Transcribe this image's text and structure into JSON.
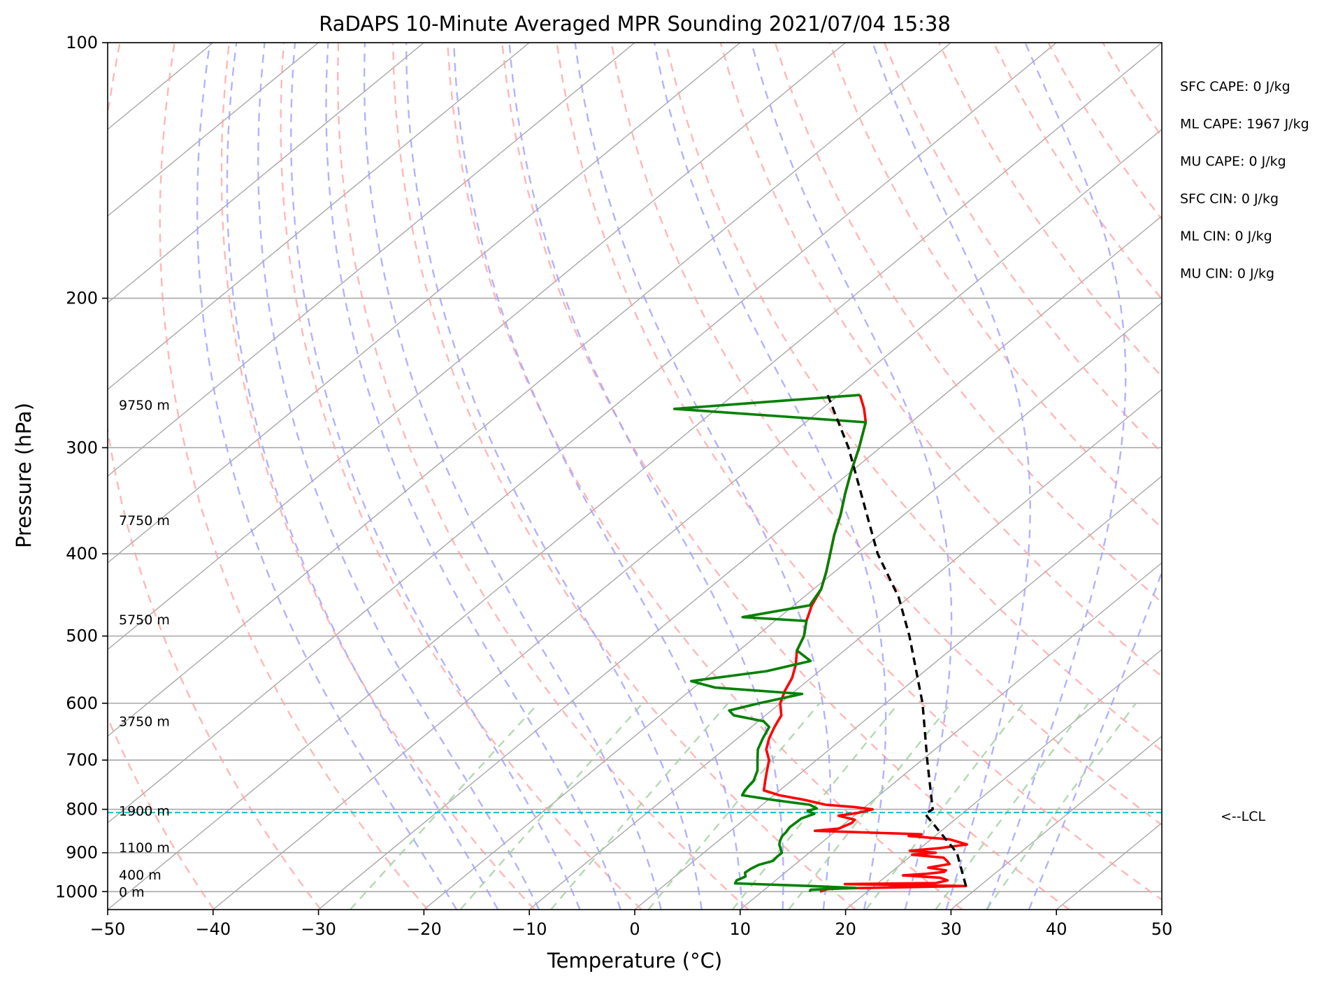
{
  "chart_data": {
    "type": "line",
    "title": "RaDAPS 10-Minute Averaged MPR Sounding 2021/07/04 15:38",
    "xlabel": "Temperature (°C)",
    "ylabel": "Pressure (hPa)",
    "xlim": [
      -50,
      50
    ],
    "ylim": [
      1050,
      100
    ],
    "y_scale": "log",
    "skew_t": true,
    "grid": true,
    "x_ticks": [
      -50,
      -40,
      -30,
      -20,
      -10,
      0,
      10,
      20,
      30,
      40,
      50
    ],
    "x_tick_labels": [
      "−50",
      "−40",
      "−30",
      "−20",
      "−10",
      "0",
      "10",
      "20",
      "30",
      "40",
      "50"
    ],
    "y_ticks": [
      1000,
      900,
      800,
      700,
      600,
      500,
      400,
      300,
      200,
      100
    ],
    "y_tick_labels": [
      "1000",
      "900",
      "800",
      "700",
      "600",
      "500",
      "400",
      "300",
      "200",
      "100"
    ],
    "series": [
      {
        "color": "#ff0000",
        "points": [
          [
            1000,
            15.5
          ],
          [
            992,
            16
          ],
          [
            985,
            28.7
          ],
          [
            980,
            17
          ],
          [
            977,
            25.5
          ],
          [
            970,
            26.3
          ],
          [
            963,
            25.3
          ],
          [
            957,
            21.5
          ],
          [
            953,
            23.5
          ],
          [
            948,
            25
          ],
          [
            944,
            25
          ],
          [
            937,
            23
          ],
          [
            928,
            24.6
          ],
          [
            920,
            24
          ],
          [
            912,
            23.3
          ],
          [
            905,
            20
          ],
          [
            900,
            22
          ],
          [
            895,
            19.3
          ],
          [
            889,
            21.8
          ],
          [
            880,
            24
          ],
          [
            868,
            21.8
          ],
          [
            860,
            17.5
          ],
          [
            856,
            18.5
          ],
          [
            848,
            8
          ],
          [
            843,
            10
          ],
          [
            830,
            10.6
          ],
          [
            823,
            10.5
          ],
          [
            814,
            8.5
          ],
          [
            808,
            10
          ],
          [
            800,
            11
          ],
          [
            795,
            9
          ],
          [
            790,
            6
          ],
          [
            780,
            3.5
          ],
          [
            770,
            0.5
          ],
          [
            760,
            -1.5
          ],
          [
            740,
            -2.5
          ],
          [
            720,
            -3.5
          ],
          [
            700,
            -4.5
          ],
          [
            680,
            -6
          ],
          [
            660,
            -7
          ],
          [
            640,
            -7.8
          ],
          [
            620,
            -8.5
          ],
          [
            600,
            -10
          ],
          [
            580,
            -11
          ],
          [
            560,
            -11.8
          ],
          [
            540,
            -13
          ],
          [
            520,
            -14.5
          ],
          [
            500,
            -15.5
          ],
          [
            480,
            -17
          ],
          [
            460,
            -18.3
          ],
          [
            440,
            -19.3
          ],
          [
            420,
            -20.8
          ],
          [
            400,
            -22.5
          ],
          [
            380,
            -24.3
          ],
          [
            360,
            -26
          ],
          [
            340,
            -28
          ],
          [
            320,
            -30
          ],
          [
            300,
            -32
          ],
          [
            280,
            -34.3
          ],
          [
            270,
            -36
          ],
          [
            260,
            -38
          ]
        ]
      },
      {
        "color": "#008000",
        "points": [
          [
            1000,
            14.5
          ],
          [
            995,
            14.4
          ],
          [
            990,
            18.5
          ],
          [
            985,
            14
          ],
          [
            978,
            6.5
          ],
          [
            970,
            6.3
          ],
          [
            960,
            6.7
          ],
          [
            950,
            6.2
          ],
          [
            940,
            6.3
          ],
          [
            930,
            6.6
          ],
          [
            920,
            7.5
          ],
          [
            910,
            7.4
          ],
          [
            900,
            7.4
          ],
          [
            890,
            6.8
          ],
          [
            880,
            6.2
          ],
          [
            870,
            5.8
          ],
          [
            860,
            5.5
          ],
          [
            850,
            5.4
          ],
          [
            840,
            5.2
          ],
          [
            820,
            5.3
          ],
          [
            810,
            6
          ],
          [
            803,
            5
          ],
          [
            798,
            5.6
          ],
          [
            790,
            4.5
          ],
          [
            780,
            0.5
          ],
          [
            770,
            -3
          ],
          [
            760,
            -3.3
          ],
          [
            740,
            -3.6
          ],
          [
            720,
            -4.4
          ],
          [
            700,
            -5.6
          ],
          [
            680,
            -6.8
          ],
          [
            660,
            -7.6
          ],
          [
            640,
            -8.3
          ],
          [
            630,
            -9.5
          ],
          [
            620,
            -13
          ],
          [
            612,
            -14
          ],
          [
            600,
            -12
          ],
          [
            585,
            -9
          ],
          [
            575,
            -18
          ],
          [
            565,
            -21
          ],
          [
            550,
            -15
          ],
          [
            535,
            -12
          ],
          [
            520,
            -14.5
          ],
          [
            500,
            -15.5
          ],
          [
            480,
            -17
          ],
          [
            475,
            -23.5
          ],
          [
            460,
            -18.5
          ],
          [
            440,
            -19.3
          ],
          [
            420,
            -20.8
          ],
          [
            400,
            -22.5
          ],
          [
            380,
            -24.3
          ],
          [
            360,
            -26
          ],
          [
            340,
            -28
          ],
          [
            320,
            -30
          ],
          [
            300,
            -32
          ],
          [
            280,
            -34.3
          ],
          [
            270,
            -54
          ],
          [
            260,
            -38
          ]
        ]
      },
      {
        "color": "#000000",
        "dashed": true,
        "points": [
          [
            985,
            28.7
          ],
          [
            900,
            24
          ],
          [
            810,
            16.5
          ],
          [
            800,
            16.7
          ],
          [
            700,
            10.5
          ],
          [
            600,
            3.5
          ],
          [
            500,
            -5.5
          ],
          [
            450,
            -11
          ],
          [
            400,
            -18
          ],
          [
            300,
            -33
          ],
          [
            258,
            -41.5
          ]
        ]
      }
    ],
    "lcl_hpa": 807,
    "lcl_label": "<--LCL",
    "height_labels": [
      {
        "p": 1000,
        "text": "0 m"
      },
      {
        "p": 955,
        "text": "400 m"
      },
      {
        "p": 887,
        "text": "1100 m"
      },
      {
        "p": 803,
        "text": "1900 m"
      },
      {
        "p": 630,
        "text": "3750 m"
      },
      {
        "p": 478,
        "text": "5750 m"
      },
      {
        "p": 365,
        "text": "7750 m"
      },
      {
        "p": 267,
        "text": "9750 m"
      }
    ],
    "indices": [
      "SFC CAPE: 0 J/kg",
      "ML CAPE: 1967 J/kg",
      "MU CAPE: 0 J/kg",
      "SFC CIN: 0 J/kg",
      "ML CIN: 0 J/kg",
      "MU CIN: 0 J/kg"
    ],
    "background_colors": {
      "isotherms": "#a8a8a8",
      "isobars": "#a8a8a8",
      "dry_adiabats": "#ff9f9f",
      "moist_adiabats": "#9f9fff",
      "mixing_ratio": "#9fcf9f",
      "lcl": "#17becf"
    }
  }
}
